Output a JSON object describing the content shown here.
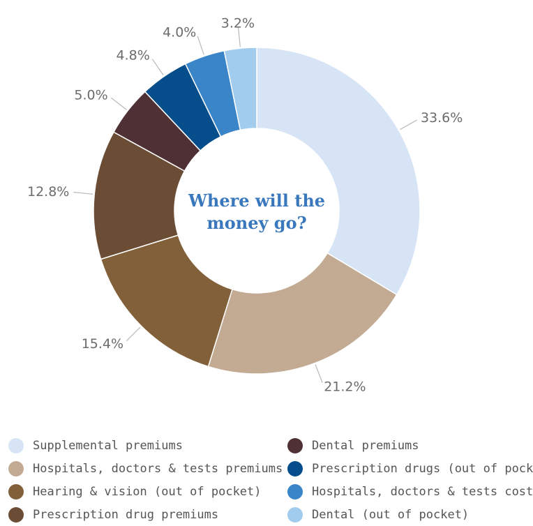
{
  "center_label": {
    "line1": "Where will the",
    "line2": "money go?"
  },
  "chart_data": {
    "type": "pie",
    "donut": true,
    "start_angle": "12 o'clock",
    "direction": "clockwise",
    "slices": [
      {
        "label": "Supplemental premiums",
        "value": 33.6,
        "value_label": "33.6%",
        "color": "#d6e4f5"
      },
      {
        "label": "Hospitals, doctors & tests premiums",
        "value": 21.2,
        "value_label": "21.2%",
        "color": "#c3aa93"
      },
      {
        "label": "Hearing & vision (out of pocket)",
        "value": 15.4,
        "value_label": "15.4%",
        "color": "#82603a"
      },
      {
        "label": "Prescription drug premiums",
        "value": 12.8,
        "value_label": "12.8%",
        "color": "#6b4d36"
      },
      {
        "label": "Dental premiums",
        "value": 5.0,
        "value_label": "5.0%",
        "color": "#4f3034"
      },
      {
        "label": "Prescription drugs (out of pocket)",
        "value": 4.8,
        "value_label": "4.8%",
        "color": "#054e8b"
      },
      {
        "label": "Hospitals, doctors & tests costs",
        "value": 4.0,
        "value_label": "4.0%",
        "color": "#3a84c8"
      },
      {
        "label": "Dental (out of pocket)",
        "value": 3.2,
        "value_label": "3.2%",
        "color": "#a2ccee"
      }
    ],
    "legend_position": "bottom, two columns"
  },
  "legend": {
    "left": [
      {
        "label": "Supplemental premiums",
        "color": "#d6e4f5"
      },
      {
        "label": "Hospitals, doctors & tests premiums",
        "color": "#c3aa93"
      },
      {
        "label": "Hearing & vision (out of pocket)",
        "color": "#82603a"
      },
      {
        "label": "Prescription drug premiums",
        "color": "#6b4d36"
      }
    ],
    "right": [
      {
        "label": "Dental premiums",
        "color": "#4f3034"
      },
      {
        "label": "Prescription drugs (out of pocket)",
        "color": "#054e8b"
      },
      {
        "label": "Hospitals, doctors & tests costs",
        "color": "#3a84c8"
      },
      {
        "label": "Dental (out of pocket)",
        "color": "#a2ccee"
      }
    ]
  },
  "colors": {
    "title": "#3a78bd",
    "value_label": "#6b6b6b",
    "leader_line": "#b8b8b8",
    "legend_text": "#555555"
  }
}
